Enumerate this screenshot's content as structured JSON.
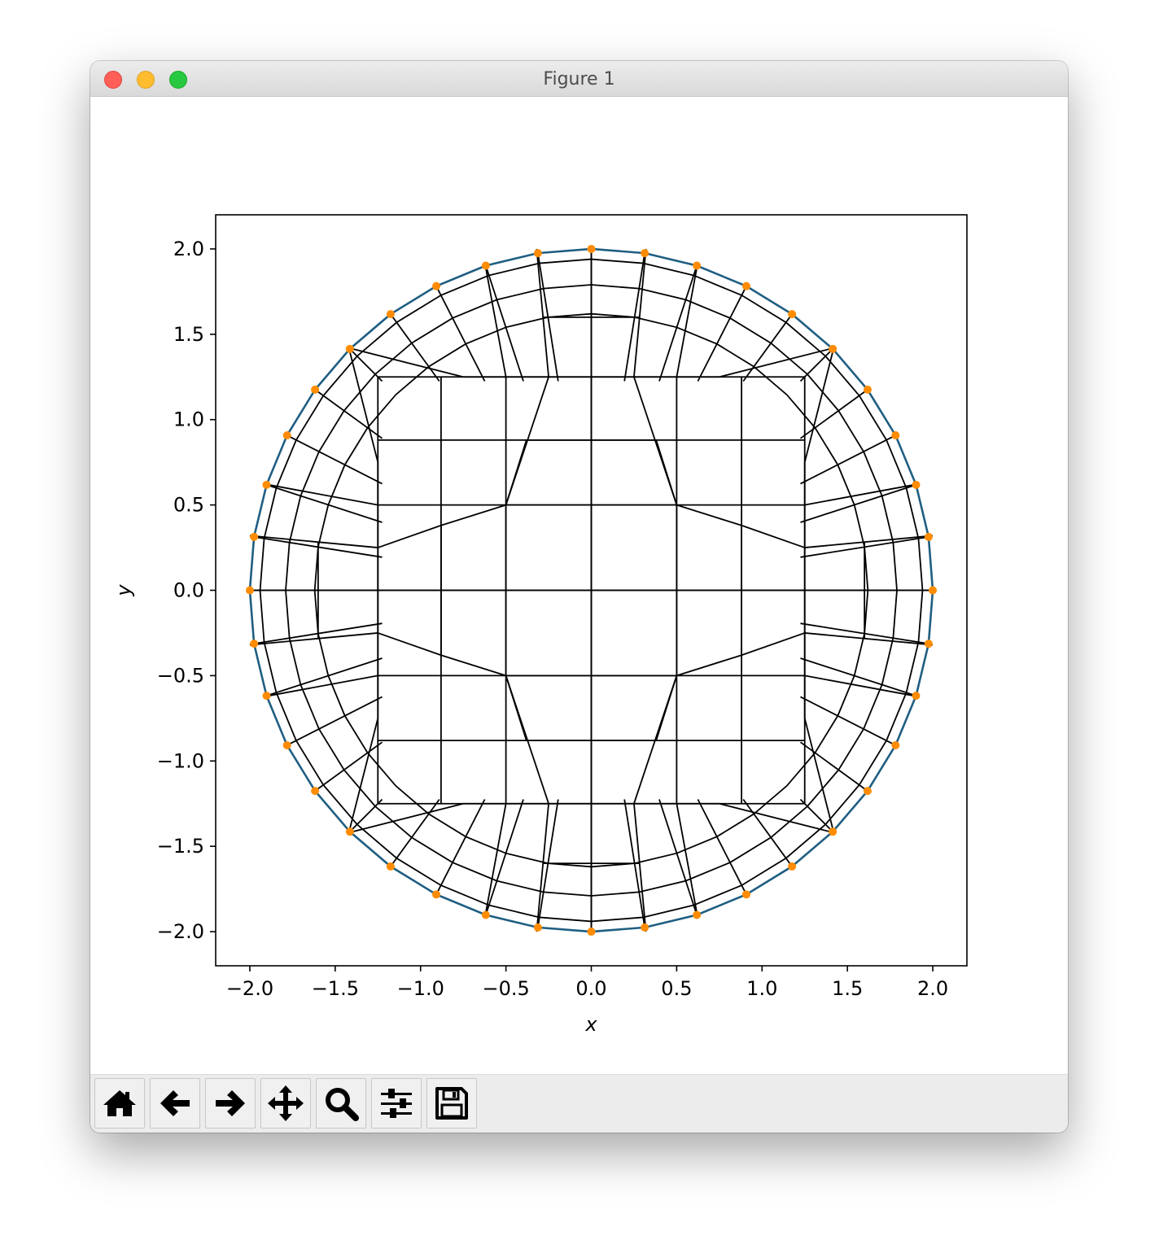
{
  "window": {
    "title": "Figure 1"
  },
  "toolbar": {
    "tools": [
      {
        "name": "home",
        "icon": "home-icon"
      },
      {
        "name": "back",
        "icon": "arrow-left-icon"
      },
      {
        "name": "forward",
        "icon": "arrow-right-icon"
      },
      {
        "name": "pan",
        "icon": "move-icon"
      },
      {
        "name": "zoom",
        "icon": "magnifier-icon"
      },
      {
        "name": "configure-subplots",
        "icon": "sliders-icon"
      },
      {
        "name": "save",
        "icon": "floppy-disk-icon"
      }
    ]
  },
  "colors": {
    "boundary": "#1f5e82",
    "mesh": "#000000",
    "nodes": "#ff8c00"
  },
  "chart_data": {
    "type": "mesh",
    "xlabel": "x",
    "ylabel": "y",
    "xlim": [
      -2.2,
      2.2
    ],
    "ylim": [
      -2.2,
      2.2
    ],
    "xticks": [
      -2.0,
      -1.5,
      -1.0,
      -0.5,
      0.0,
      0.5,
      1.0,
      1.5,
      2.0
    ],
    "yticks": [
      -2.0,
      -1.5,
      -1.0,
      -0.5,
      0.0,
      0.5,
      1.0,
      1.5,
      2.0
    ],
    "xtick_labels": [
      "−2.0",
      "−1.5",
      "−1.0",
      "−0.5",
      "0.0",
      "0.5",
      "1.0",
      "1.5",
      "2.0"
    ],
    "ytick_labels": [
      "−2.0",
      "−1.5",
      "−1.0",
      "−0.5",
      "0.0",
      "0.5",
      "1.0",
      "1.5",
      "2.0"
    ],
    "boundary": {
      "shape": "circle",
      "center": [
        0,
        0
      ],
      "radius": 2.0,
      "node_count": 40
    },
    "core": {
      "outer_x": [
        -1.25,
        -0.5,
        0,
        0.5,
        1.25
      ],
      "inner_half_width": 0.5
    },
    "mesh_edges": [
      [
        [
          -2.0,
          0.0
        ],
        [
          2.0,
          0.0
        ]
      ],
      [
        [
          0.0,
          -2.0
        ],
        [
          0.0,
          2.0
        ]
      ],
      [
        [
          -0.5,
          -0.5
        ],
        [
          -0.5,
          0.5
        ]
      ],
      [
        [
          0.5,
          -0.5
        ],
        [
          0.5,
          0.5
        ]
      ],
      [
        [
          -0.5,
          0.5
        ],
        [
          0.5,
          0.5
        ]
      ],
      [
        [
          -0.5,
          -0.5
        ],
        [
          0.5,
          -0.5
        ]
      ],
      [
        [
          -0.25,
          1.25
        ],
        [
          -0.5,
          0.5
        ]
      ],
      [
        [
          0.25,
          1.25
        ],
        [
          0.5,
          0.5
        ]
      ],
      [
        [
          -0.25,
          -1.25
        ],
        [
          -0.5,
          -0.5
        ]
      ],
      [
        [
          0.25,
          -1.25
        ],
        [
          0.5,
          -0.5
        ]
      ],
      [
        [
          -0.38,
          0.88
        ],
        [
          0.38,
          0.88
        ]
      ],
      [
        [
          -0.38,
          -0.88
        ],
        [
          0.38,
          -0.88
        ]
      ],
      [
        [
          -0.88,
          0.38
        ],
        [
          -0.88,
          -0.38
        ]
      ],
      [
        [
          0.88,
          0.38
        ],
        [
          0.88,
          -0.38
        ]
      ],
      [
        [
          -0.75,
          1.25
        ],
        [
          0.75,
          1.25
        ]
      ],
      [
        [
          -0.75,
          -1.25
        ],
        [
          0.75,
          -1.25
        ]
      ],
      [
        [
          -1.25,
          0.75
        ],
        [
          -1.25,
          -0.75
        ]
      ],
      [
        [
          1.25,
          0.75
        ],
        [
          1.25,
          -0.75
        ]
      ],
      [
        [
          -0.5,
          0.5
        ],
        [
          -0.88,
          0.38
        ]
      ],
      [
        [
          0.5,
          0.5
        ],
        [
          0.88,
          0.38
        ]
      ],
      [
        [
          -0.5,
          -0.5
        ],
        [
          -0.88,
          -0.38
        ]
      ],
      [
        [
          0.5,
          -0.5
        ],
        [
          0.88,
          -0.38
        ]
      ],
      [
        [
          -0.88,
          0.38
        ],
        [
          -1.25,
          0.25
        ]
      ],
      [
        [
          0.88,
          0.38
        ],
        [
          1.25,
          0.25
        ]
      ],
      [
        [
          -0.88,
          -0.38
        ],
        [
          -1.25,
          -0.25
        ]
      ],
      [
        [
          0.88,
          -0.38
        ],
        [
          1.25,
          -0.25
        ]
      ],
      [
        [
          -0.38,
          0.88
        ],
        [
          -0.5,
          0.5
        ]
      ],
      [
        [
          0.38,
          0.88
        ],
        [
          0.5,
          0.5
        ]
      ],
      [
        [
          -0.38,
          -0.88
        ],
        [
          -0.5,
          -0.5
        ]
      ],
      [
        [
          0.38,
          -0.88
        ],
        [
          0.5,
          -0.5
        ]
      ],
      [
        [
          -1.25,
          0.75
        ],
        [
          -1.42,
          1.42
        ]
      ],
      [
        [
          1.25,
          0.75
        ],
        [
          1.42,
          1.42
        ]
      ],
      [
        [
          -1.25,
          -0.75
        ],
        [
          -1.42,
          -1.42
        ]
      ],
      [
        [
          1.25,
          -0.75
        ],
        [
          1.42,
          -1.42
        ]
      ],
      [
        [
          -0.75,
          1.25
        ],
        [
          -1.42,
          1.42
        ]
      ],
      [
        [
          0.75,
          1.25
        ],
        [
          1.42,
          1.42
        ]
      ],
      [
        [
          -0.75,
          -1.25
        ],
        [
          -1.42,
          -1.42
        ]
      ],
      [
        [
          0.75,
          -1.25
        ],
        [
          1.42,
          -1.42
        ]
      ],
      [
        [
          -1.25,
          0.25
        ],
        [
          -2.0,
          0.32
        ]
      ],
      [
        [
          1.25,
          0.25
        ],
        [
          2.0,
          0.32
        ]
      ],
      [
        [
          -1.25,
          -0.25
        ],
        [
          -2.0,
          -0.32
        ]
      ],
      [
        [
          1.25,
          -0.25
        ],
        [
          2.0,
          -0.32
        ]
      ],
      [
        [
          -1.25,
          0.5
        ],
        [
          -1.9,
          0.62
        ]
      ],
      [
        [
          1.25,
          0.5
        ],
        [
          1.9,
          0.62
        ]
      ],
      [
        [
          -1.25,
          -0.5
        ],
        [
          -1.9,
          -0.62
        ]
      ],
      [
        [
          1.25,
          -0.5
        ],
        [
          1.9,
          -0.62
        ]
      ],
      [
        [
          -0.25,
          1.25
        ],
        [
          -0.32,
          2.0
        ]
      ],
      [
        [
          0.25,
          1.25
        ],
        [
          0.32,
          2.0
        ]
      ],
      [
        [
          -0.25,
          -1.25
        ],
        [
          -0.32,
          -2.0
        ]
      ],
      [
        [
          0.25,
          -1.25
        ],
        [
          0.32,
          -2.0
        ]
      ],
      [
        [
          -0.5,
          1.25
        ],
        [
          -0.62,
          1.9
        ]
      ],
      [
        [
          0.5,
          1.25
        ],
        [
          0.62,
          1.9
        ]
      ],
      [
        [
          -0.5,
          -1.25
        ],
        [
          -0.62,
          -1.9
        ]
      ],
      [
        [
          0.5,
          -1.25
        ],
        [
          0.62,
          -1.9
        ]
      ],
      [
        [
          -1.6,
          0.28
        ],
        [
          -1.6,
          -0.28
        ]
      ],
      [
        [
          1.6,
          0.28
        ],
        [
          1.6,
          -0.28
        ]
      ],
      [
        [
          -0.28,
          1.6
        ],
        [
          0.28,
          1.6
        ]
      ],
      [
        [
          -0.28,
          -1.6
        ],
        [
          0.28,
          -1.6
        ]
      ]
    ]
  }
}
